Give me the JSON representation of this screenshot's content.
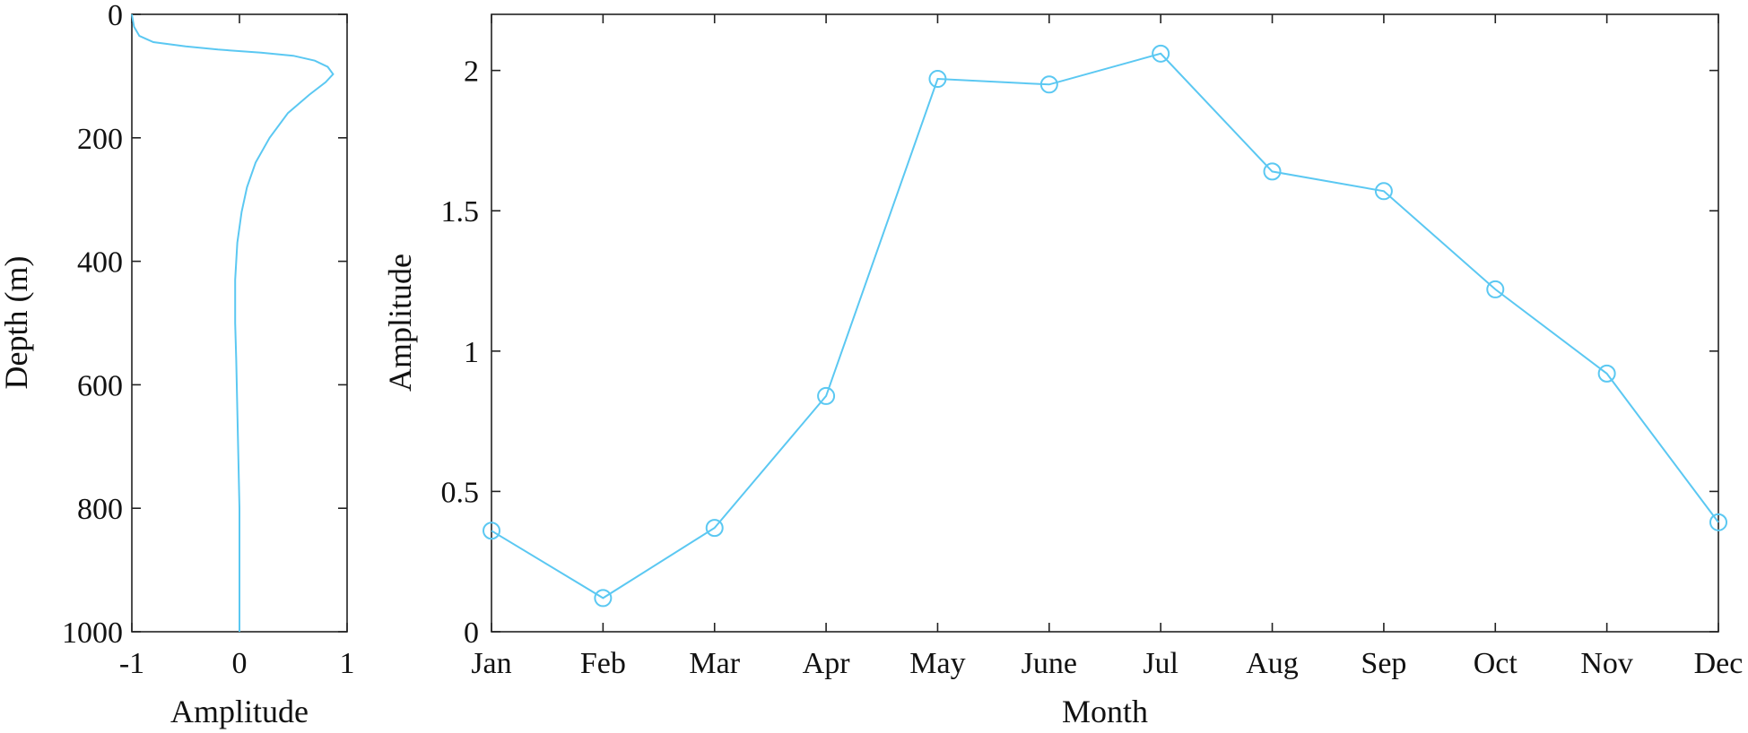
{
  "chart_data": [
    {
      "type": "line",
      "xlabel": "Amplitude",
      "ylabel": "Depth (m)",
      "xlim": [
        -1,
        1
      ],
      "ylim": [
        0,
        1000
      ],
      "y_reversed": true,
      "x_ticks": [
        -1,
        0,
        1
      ],
      "x_tick_labels": [
        "-1",
        "0",
        "1"
      ],
      "y_ticks": [
        0,
        200,
        400,
        600,
        800,
        1000
      ],
      "y_tick_labels": [
        "0",
        "200",
        "400",
        "600",
        "800",
        "1000"
      ],
      "grid": false,
      "series": [
        {
          "color": "#5bc8f2",
          "points": [
            [
              -1.0,
              0
            ],
            [
              -0.98,
              20
            ],
            [
              -0.93,
              35
            ],
            [
              -0.8,
              45
            ],
            [
              -0.5,
              52
            ],
            [
              -0.2,
              57
            ],
            [
              0.2,
              62
            ],
            [
              0.5,
              67
            ],
            [
              0.7,
              75
            ],
            [
              0.82,
              85
            ],
            [
              0.87,
              97
            ],
            [
              0.8,
              110
            ],
            [
              0.65,
              130
            ],
            [
              0.45,
              160
            ],
            [
              0.28,
              200
            ],
            [
              0.15,
              240
            ],
            [
              0.07,
              280
            ],
            [
              0.02,
              320
            ],
            [
              -0.02,
              370
            ],
            [
              -0.04,
              430
            ],
            [
              -0.04,
              500
            ],
            [
              -0.03,
              560
            ],
            [
              -0.02,
              640
            ],
            [
              -0.01,
              720
            ],
            [
              0.0,
              800
            ],
            [
              0.0,
              900
            ],
            [
              0.0,
              1000
            ]
          ]
        }
      ]
    },
    {
      "type": "line",
      "xlabel": "Month",
      "ylabel": "Amplitude",
      "categories": [
        "Jan",
        "Feb",
        "Mar",
        "Apr",
        "May",
        "June",
        "Jul",
        "Aug",
        "Sep",
        "Oct",
        "Nov",
        "Dec"
      ],
      "ylim": [
        0,
        2.2
      ],
      "y_ticks": [
        0,
        0.5,
        1,
        1.5,
        2
      ],
      "y_tick_labels": [
        "0",
        "0.5",
        "1",
        "1.5",
        "2"
      ],
      "grid": false,
      "marker": "circle",
      "series": [
        {
          "color": "#5bc8f2",
          "values": [
            0.36,
            0.12,
            0.37,
            0.84,
            1.97,
            1.95,
            2.06,
            1.64,
            1.57,
            1.22,
            0.92,
            0.39
          ]
        }
      ]
    }
  ]
}
